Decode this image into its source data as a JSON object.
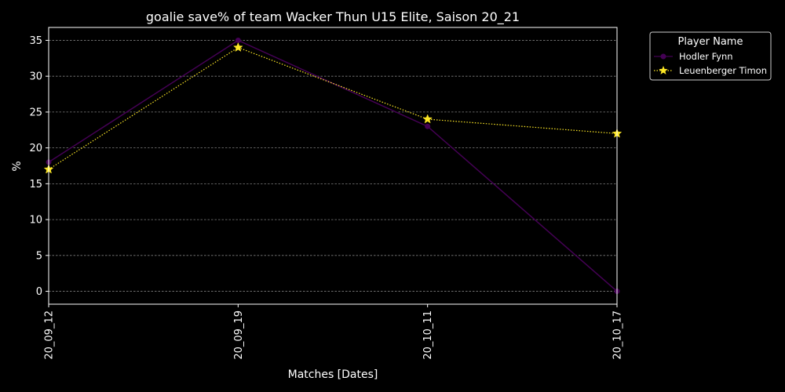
{
  "chart_data": {
    "type": "line",
    "title": "goalie save% of team Wacker Thun U15 Elite, Saison 20_21",
    "xlabel": "Matches [Dates]",
    "ylabel": "%",
    "categories": [
      "20_09_12",
      "20_09_19",
      "20_10_11",
      "20_10_17"
    ],
    "ylim": [
      -1.8,
      36.8
    ],
    "yticks": [
      0,
      5,
      10,
      15,
      20,
      25,
      30,
      35
    ],
    "grid": "horizontal dashed",
    "legend": {
      "title": "Player Name",
      "placement": "outside-right-top"
    },
    "series": [
      {
        "name": "Hodler Fynn",
        "values": [
          18,
          35,
          23,
          0
        ],
        "color": "#440154",
        "line_style": "solid",
        "marker": "circle"
      },
      {
        "name": "Leuenberger Timon",
        "values": [
          17,
          34,
          24,
          22
        ],
        "color": "#fde725",
        "line_style": "dotted",
        "marker": "star"
      }
    ],
    "colors": {
      "background": "#000000",
      "axes": "#ffffff",
      "grid": "#7f7f7f",
      "text": "#ffffff"
    }
  }
}
